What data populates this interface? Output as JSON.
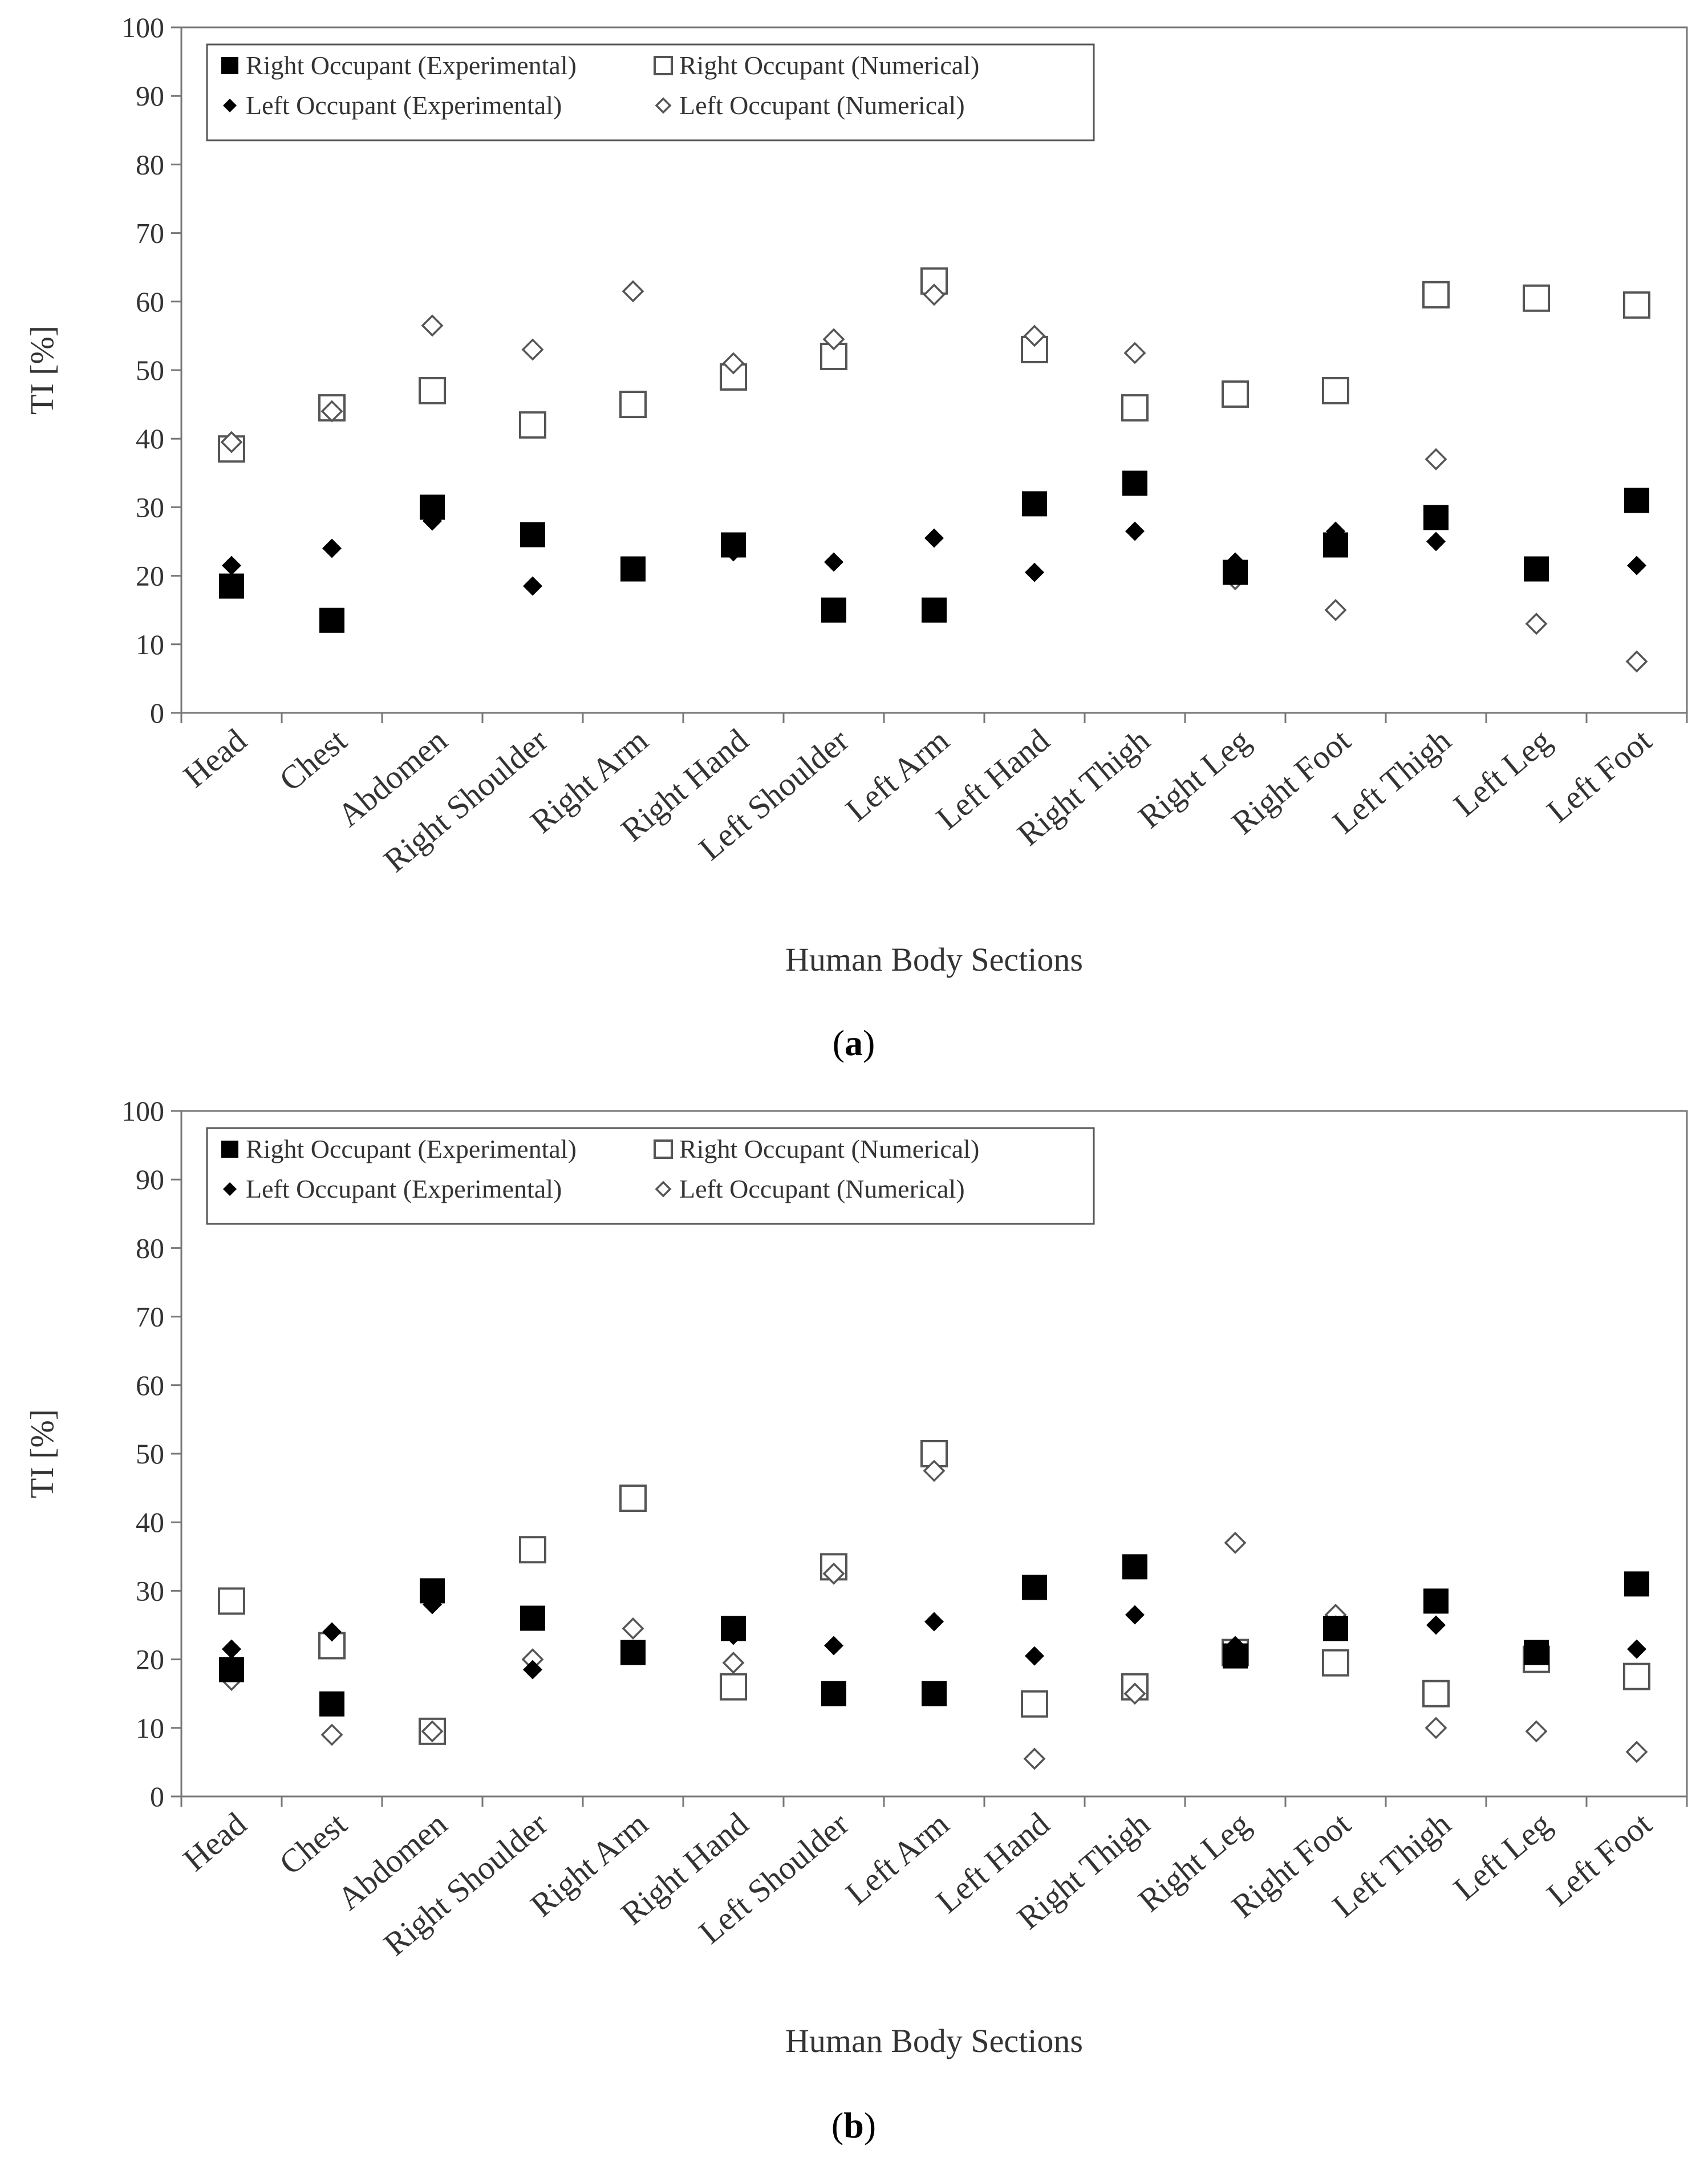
{
  "chart_data": [
    {
      "panel_label": "a",
      "type": "scatter",
      "ylabel": "TI [%]",
      "xlabel": "Human Body Sections",
      "ylim": [
        0,
        100
      ],
      "yticks": [
        "0",
        "10",
        "20",
        "30",
        "40",
        "50",
        "60",
        "70",
        "80",
        "90",
        "100"
      ],
      "categories": [
        "Head",
        "Chest",
        "Abdomen",
        "Right Shoulder",
        "Right Arm",
        "Right Hand",
        "Left Shoulder",
        "Left Arm",
        "Left Hand",
        "Right Thigh",
        "Right Leg",
        "Right Foot",
        "Left Thigh",
        "Left Leg",
        "Left Foot"
      ],
      "legend_position": "top-left",
      "series": [
        {
          "name": "Right Occupant (Experimental)",
          "marker": "filled-square",
          "values": [
            18.5,
            13.5,
            30,
            26,
            21,
            24.5,
            15,
            15,
            30.5,
            33.5,
            20.5,
            24.5,
            28.5,
            21,
            31
          ]
        },
        {
          "name": "Right Occupant (Numerical)",
          "marker": "open-square",
          "values": [
            38.5,
            44.5,
            47,
            42,
            45,
            49,
            52,
            63,
            53,
            44.5,
            46.5,
            47,
            61,
            60.5,
            59.5
          ]
        },
        {
          "name": "Left Occupant (Experimental)",
          "marker": "filled-diamond",
          "values": [
            21.5,
            24,
            28,
            18.5,
            21,
            23.5,
            22,
            25.5,
            20.5,
            26.5,
            22,
            26.5,
            25,
            21,
            21.5
          ]
        },
        {
          "name": "Left Occupant (Numerical)",
          "marker": "open-diamond",
          "values": [
            39.5,
            44,
            56.5,
            53,
            61.5,
            51,
            54.5,
            61,
            55,
            52.5,
            19.5,
            15,
            37,
            13,
            7.5
          ]
        }
      ]
    },
    {
      "panel_label": "b",
      "type": "scatter",
      "ylabel": "TI [%]",
      "xlabel": "Human Body Sections",
      "ylim": [
        0,
        100
      ],
      "yticks": [
        "0",
        "10",
        "20",
        "30",
        "40",
        "50",
        "60",
        "70",
        "80",
        "90",
        "100"
      ],
      "categories": [
        "Head",
        "Chest",
        "Abdomen",
        "Right Shoulder",
        "Right Arm",
        "Right Hand",
        "Left Shoulder",
        "Left Arm",
        "Left Hand",
        "Right Thigh",
        "Right Leg",
        "Right Foot",
        "Left Thigh",
        "Left Leg",
        "Left Foot"
      ],
      "legend_position": "top-left",
      "series": [
        {
          "name": "Right Occupant (Experimental)",
          "marker": "filled-square",
          "values": [
            18.5,
            13.5,
            30,
            26,
            21,
            24.5,
            15,
            15,
            30.5,
            33.5,
            20.5,
            24.5,
            28.5,
            21,
            31
          ]
        },
        {
          "name": "Right Occupant (Numerical)",
          "marker": "open-square",
          "values": [
            28.5,
            22,
            9.5,
            36,
            43.5,
            16,
            33.5,
            50,
            13.5,
            16,
            21,
            19.5,
            15,
            20,
            17.5
          ]
        },
        {
          "name": "Left Occupant (Experimental)",
          "marker": "filled-diamond",
          "values": [
            21.5,
            24,
            28,
            18.5,
            21,
            23.5,
            22,
            25.5,
            20.5,
            26.5,
            22,
            25,
            25,
            21,
            21.5
          ]
        },
        {
          "name": "Left Occupant (Numerical)",
          "marker": "open-diamond",
          "values": [
            17,
            9,
            9.5,
            20,
            24.5,
            19.5,
            32.5,
            47.5,
            5.5,
            15,
            37,
            26.5,
            10,
            9.5,
            6.5
          ]
        }
      ]
    }
  ]
}
